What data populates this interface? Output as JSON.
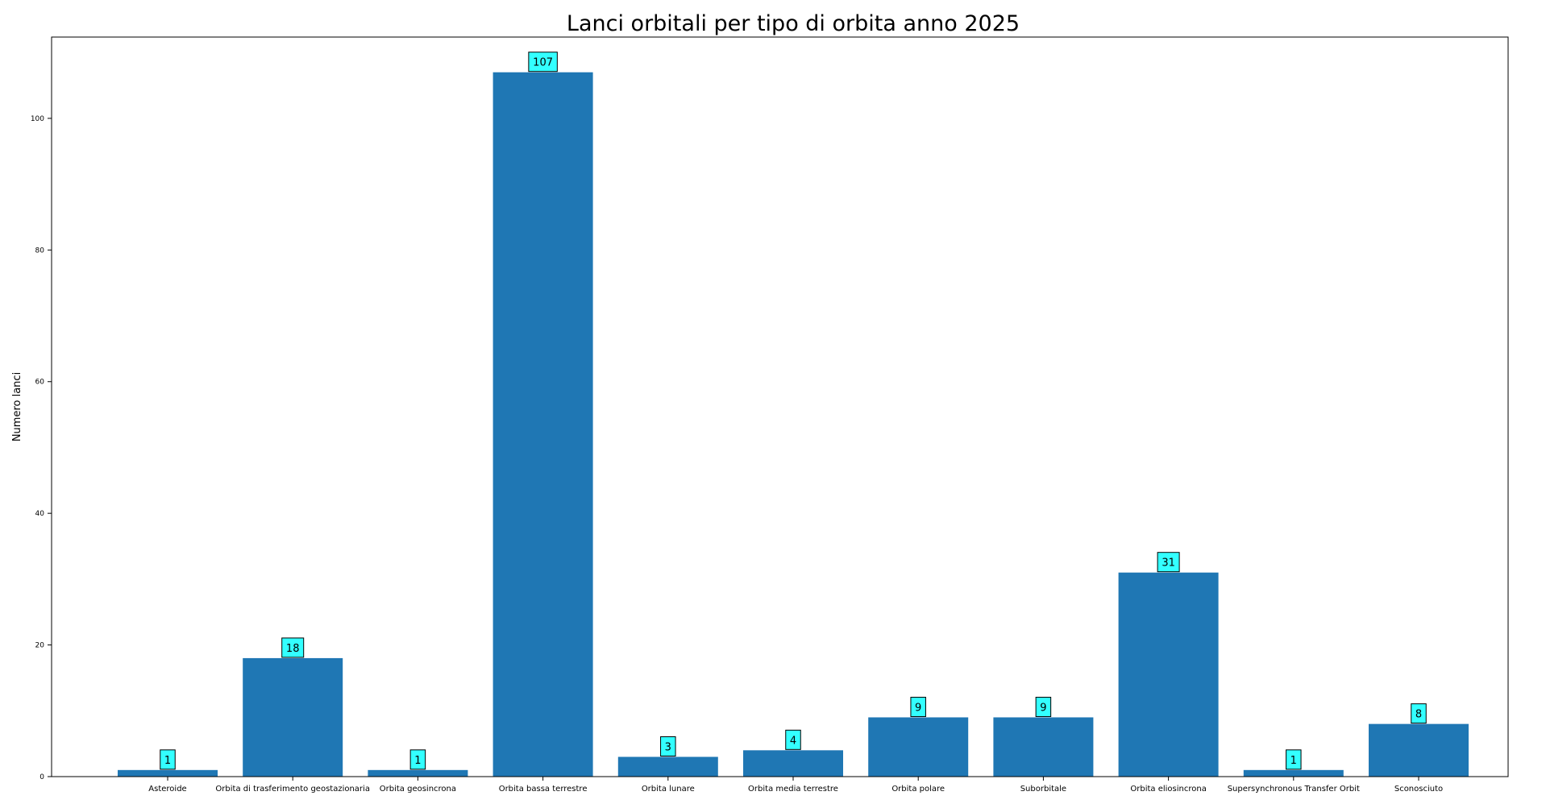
{
  "chart_data": {
    "type": "bar",
    "title": "Lanci orbitali per tipo di orbita anno 2025",
    "xlabel": "",
    "ylabel": "Numero lanci",
    "categories": [
      "Asteroide",
      "Orbita di trasferimento geostazionaria",
      "Orbita geosincrona",
      "Orbita bassa terrestre",
      "Orbita lunare",
      "Orbita media terrestre",
      "Orbita polare",
      "Suborbitale",
      "Orbita eliosincrona",
      "Supersynchronous Transfer Orbit",
      "Sconosciuto"
    ],
    "values": [
      1,
      18,
      1,
      107,
      3,
      4,
      9,
      9,
      31,
      1,
      8
    ],
    "ylim": [
      0,
      112.35
    ],
    "yticks": [
      0,
      20,
      40,
      60,
      80,
      100
    ],
    "grid": false,
    "colors": {
      "bar": "#1f77b4",
      "label_box": "#33ffff",
      "label_border": "#000000"
    }
  }
}
